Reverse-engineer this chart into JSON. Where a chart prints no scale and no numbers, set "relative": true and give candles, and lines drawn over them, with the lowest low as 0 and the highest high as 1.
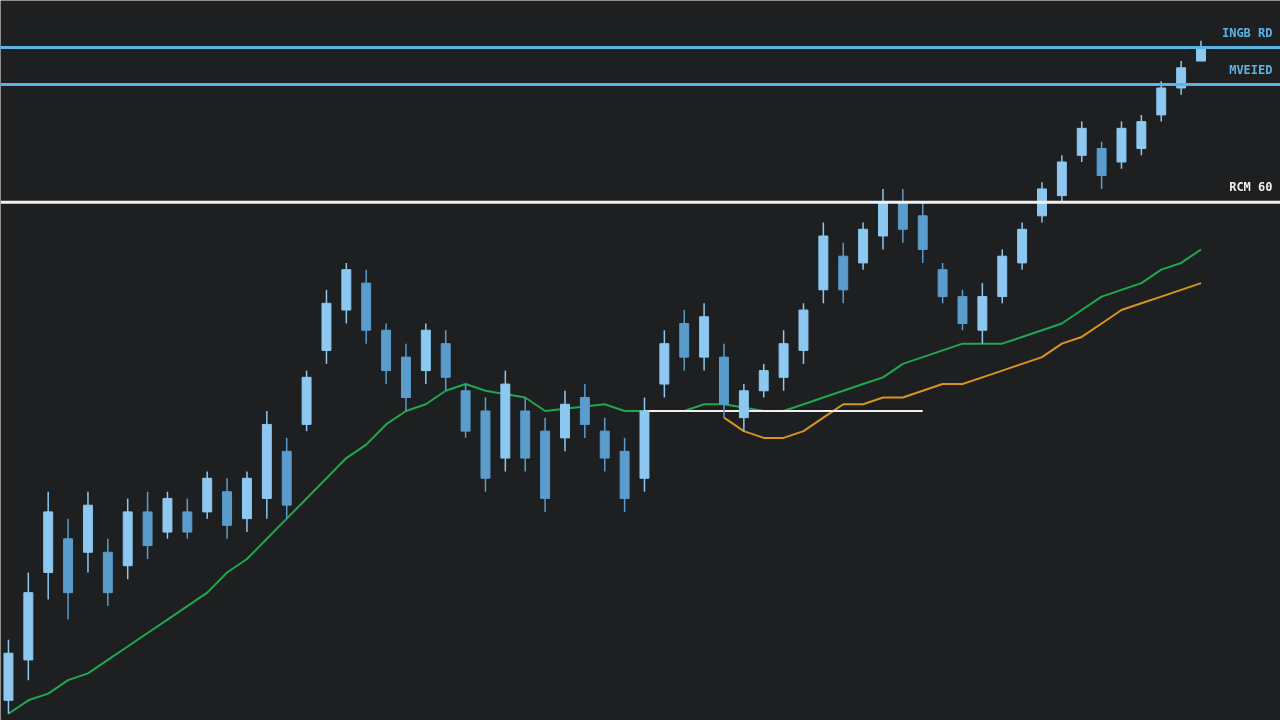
{
  "chart_data": {
    "type": "candlestick",
    "relative": true,
    "grid": false,
    "tick_labels": false,
    "categories": [
      null,
      null,
      null,
      null,
      null,
      null,
      null,
      null,
      null,
      null,
      null,
      null,
      null,
      null,
      null,
      null,
      null,
      null,
      null,
      null,
      null,
      null,
      null,
      null,
      null,
      null,
      null,
      null,
      null,
      null,
      null,
      null,
      null,
      null,
      null,
      null,
      null,
      null,
      null,
      null,
      null,
      null,
      null,
      null,
      null,
      null,
      null,
      null,
      null,
      null,
      null,
      null,
      null,
      null,
      null,
      null,
      null,
      null,
      null,
      null,
      null
    ],
    "colors": [
      "#8cc8f0",
      "#8cc8f0",
      "#8cc8f0",
      "#5a9ccc",
      "#8cc8f0",
      "#5a9ccc",
      "#8cc8f0",
      "#5a9ccc",
      "#8cc8f0",
      "#5a9ccc",
      "#8cc8f0",
      "#5a9ccc",
      "#8cc8f0",
      "#8cc8f0",
      "#5a9ccc",
      "#8cc8f0",
      "#8cc8f0",
      "#8cc8f0",
      "#5a9ccc",
      "#5a9ccc",
      "#5a9ccc",
      "#8cc8f0",
      "#5a9ccc",
      "#5a9ccc",
      "#5a9ccc",
      "#8cc8f0",
      "#5a9ccc",
      "#5a9ccc",
      "#8cc8f0",
      "#5a9ccc",
      "#5a9ccc",
      "#5a9ccc",
      "#8cc8f0",
      "#8cc8f0",
      "#5a9ccc",
      "#8cc8f0",
      "#5a9ccc",
      "#8cc8f0",
      "#8cc8f0",
      "#8cc8f0",
      "#8cc8f0",
      "#8cc8f0",
      "#5a9ccc",
      "#8cc8f0",
      "#8cc8f0",
      "#5a9ccc",
      "#5a9ccc",
      "#5a9ccc",
      "#5a9ccc",
      "#8cc8f0",
      "#8cc8f0",
      "#8cc8f0",
      "#8cc8f0",
      "#8cc8f0",
      "#8cc8f0",
      "#5a9ccc",
      "#8cc8f0",
      "#8cc8f0",
      "#8cc8f0",
      "#8cc8f0",
      "#8cc8f0"
    ],
    "ohlc": [
      [
        0.02,
        0.11,
        0,
        0.09
      ],
      [
        0.08,
        0.21,
        0.05,
        0.18
      ],
      [
        0.21,
        0.33,
        0.17,
        0.3
      ],
      [
        0.26,
        0.29,
        0.14,
        0.18
      ],
      [
        0.24,
        0.33,
        0.21,
        0.31
      ],
      [
        0.24,
        0.26,
        0.16,
        0.18
      ],
      [
        0.22,
        0.32,
        0.2,
        0.3
      ],
      [
        0.3,
        0.33,
        0.23,
        0.25
      ],
      [
        0.27,
        0.33,
        0.26,
        0.32
      ],
      [
        0.3,
        0.32,
        0.26,
        0.27
      ],
      [
        0.3,
        0.36,
        0.29,
        0.35
      ],
      [
        0.33,
        0.35,
        0.26,
        0.28
      ],
      [
        0.29,
        0.36,
        0.27,
        0.35
      ],
      [
        0.32,
        0.45,
        0.29,
        0.43
      ],
      [
        0.39,
        0.41,
        0.29,
        0.31
      ],
      [
        0.43,
        0.51,
        0.42,
        0.5
      ],
      [
        0.54,
        0.63,
        0.52,
        0.61
      ],
      [
        0.6,
        0.67,
        0.58,
        0.66
      ],
      [
        0.64,
        0.66,
        0.55,
        0.57
      ],
      [
        0.57,
        0.58,
        0.49,
        0.51
      ],
      [
        0.53,
        0.55,
        0.45,
        0.47
      ],
      [
        0.51,
        0.58,
        0.49,
        0.57
      ],
      [
        0.55,
        0.57,
        0.48,
        0.5
      ],
      [
        0.48,
        0.49,
        0.41,
        0.42
      ],
      [
        0.45,
        0.47,
        0.33,
        0.35
      ],
      [
        0.38,
        0.51,
        0.36,
        0.49
      ],
      [
        0.45,
        0.47,
        0.36,
        0.38
      ],
      [
        0.42,
        0.44,
        0.3,
        0.32
      ],
      [
        0.41,
        0.48,
        0.39,
        0.46
      ],
      [
        0.47,
        0.49,
        0.41,
        0.43
      ],
      [
        0.42,
        0.44,
        0.36,
        0.38
      ],
      [
        0.39,
        0.41,
        0.3,
        0.32
      ],
      [
        0.35,
        0.47,
        0.33,
        0.45
      ],
      [
        0.49,
        0.57,
        0.47,
        0.55
      ],
      [
        0.58,
        0.6,
        0.51,
        0.53
      ],
      [
        0.53,
        0.61,
        0.51,
        0.59
      ],
      [
        0.53,
        0.55,
        0.44,
        0.46
      ],
      [
        0.44,
        0.49,
        0.42,
        0.48
      ],
      [
        0.48,
        0.52,
        0.47,
        0.51
      ],
      [
        0.5,
        0.57,
        0.48,
        0.55
      ],
      [
        0.54,
        0.61,
        0.52,
        0.6
      ],
      [
        0.63,
        0.73,
        0.61,
        0.71
      ],
      [
        0.68,
        0.7,
        0.61,
        0.63
      ],
      [
        0.67,
        0.73,
        0.66,
        0.72
      ],
      [
        0.71,
        0.78,
        0.69,
        0.76
      ],
      [
        0.76,
        0.78,
        0.7,
        0.72
      ],
      [
        0.74,
        0.76,
        0.67,
        0.69
      ],
      [
        0.66,
        0.67,
        0.61,
        0.62
      ],
      [
        0.62,
        0.63,
        0.57,
        0.58
      ],
      [
        0.57,
        0.64,
        0.55,
        0.62
      ],
      [
        0.62,
        0.69,
        0.61,
        0.68
      ],
      [
        0.67,
        0.73,
        0.66,
        0.72
      ],
      [
        0.74,
        0.79,
        0.73,
        0.78
      ],
      [
        0.77,
        0.83,
        0.76,
        0.82
      ],
      [
        0.83,
        0.88,
        0.82,
        0.87
      ],
      [
        0.84,
        0.85,
        0.78,
        0.8
      ],
      [
        0.82,
        0.88,
        0.81,
        0.87
      ],
      [
        0.84,
        0.89,
        0.83,
        0.88
      ],
      [
        0.89,
        0.94,
        0.88,
        0.93
      ],
      [
        0.93,
        0.97,
        0.92,
        0.96
      ],
      [
        0.97,
        1.0,
        0.97,
        0.99
      ]
    ],
    "series": [
      {
        "type": "line",
        "color": "#1fa84f",
        "values": [
          0,
          0.02,
          0.03,
          0.05,
          0.06,
          0.08,
          0.1,
          0.12,
          0.14,
          0.16,
          0.18,
          0.21,
          0.23,
          0.26,
          0.29,
          0.32,
          0.35,
          0.38,
          0.4,
          0.43,
          0.45,
          0.46,
          0.48,
          0.49,
          0.48,
          null,
          0.47,
          0.45,
          null,
          null,
          0.46,
          0.45,
          null,
          null,
          0.45,
          0.46,
          0.46,
          null,
          0.45,
          0.45,
          0.46,
          0.47,
          0.48,
          0.49,
          0.5,
          0.52,
          0.53,
          0.54,
          0.55,
          0.55,
          0.55,
          0.56,
          0.57,
          0.58,
          0.6,
          0.62,
          0.63,
          0.64,
          0.66,
          0.67,
          0.69
        ]
      },
      {
        "type": "line",
        "color": "#d9931f",
        "values": [
          null,
          null,
          null,
          null,
          null,
          null,
          null,
          null,
          null,
          null,
          null,
          null,
          null,
          null,
          null,
          null,
          null,
          null,
          null,
          null,
          null,
          null,
          null,
          null,
          null,
          null,
          null,
          null,
          null,
          null,
          null,
          null,
          null,
          null,
          null,
          null,
          0.44,
          0.42,
          0.41,
          0.41,
          0.42,
          0.44,
          0.46,
          0.46,
          0.47,
          0.47,
          0.48,
          0.49,
          0.49,
          0.5,
          0.51,
          0.52,
          0.53,
          0.55,
          0.56,
          0.58,
          0.6,
          0.61,
          0.62,
          0.63,
          0.64
        ]
      },
      {
        "type": "line",
        "color": "#f0f0f0",
        "values": [
          null,
          null,
          null,
          null,
          null,
          null,
          null,
          null,
          null,
          null,
          null,
          null,
          null,
          null,
          null,
          null,
          null,
          null,
          null,
          null,
          null,
          null,
          null,
          null,
          null,
          null,
          null,
          null,
          null,
          null,
          null,
          null,
          0.45,
          0.45,
          0.45,
          0.45,
          0.45,
          null,
          0.45,
          0.45,
          0.45,
          0.45,
          0.45,
          0.45,
          0.45,
          0.45,
          0.45,
          null,
          null,
          null,
          null,
          null,
          null,
          null,
          null,
          null,
          null,
          null,
          null,
          null,
          null
        ]
      }
    ],
    "ref_lines": [
      {
        "axis": "y",
        "value": 0.99,
        "label": "INGB RD",
        "color": "#5ab4e6"
      },
      {
        "axis": "y",
        "value": 0.935,
        "label": "MVEIED",
        "color": "#5ab4e6"
      },
      {
        "axis": "y",
        "value": 0.76,
        "label": "RCM 60",
        "color": "#f0f0f0"
      }
    ]
  }
}
